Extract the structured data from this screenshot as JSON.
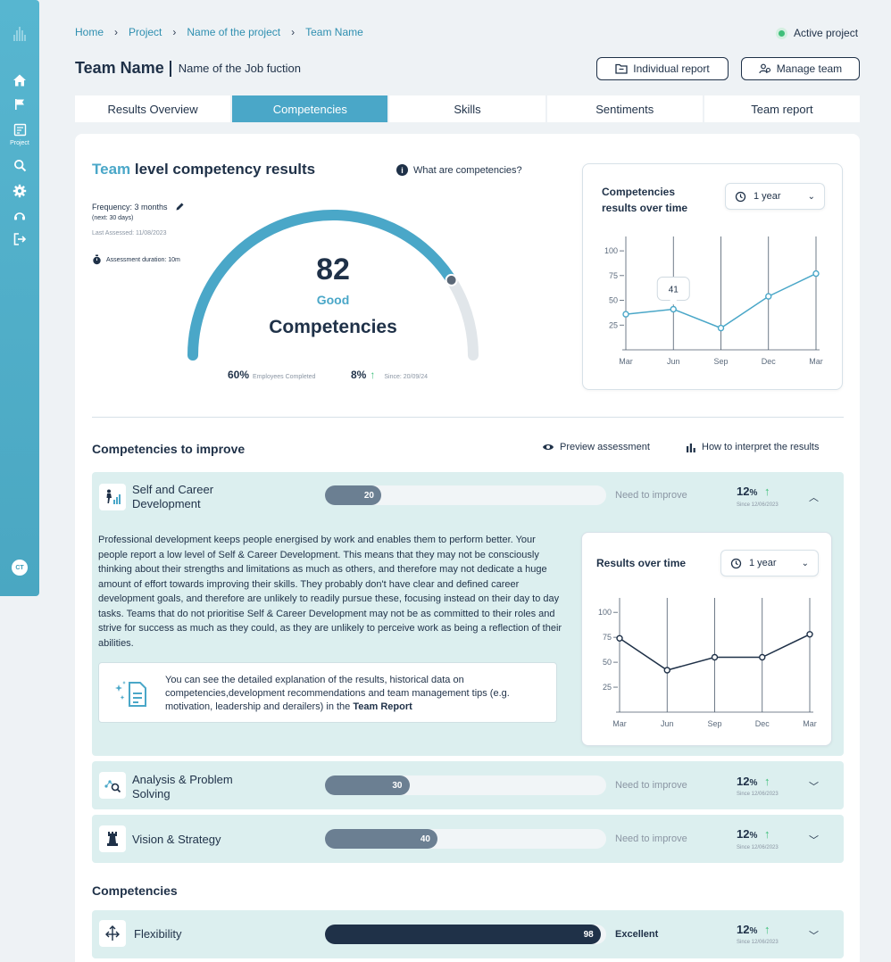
{
  "sidebar": {
    "items": [
      {
        "icon": "home-icon"
      },
      {
        "icon": "flag-icon"
      },
      {
        "icon": "project-icon",
        "label": "Project"
      },
      {
        "icon": "search-icon"
      },
      {
        "icon": "gear-icon"
      },
      {
        "icon": "support-icon"
      },
      {
        "icon": "logout-icon"
      }
    ],
    "avatar": "CT"
  },
  "breadcrumb": [
    "Home",
    "Project",
    "Name of the project",
    "Team Name"
  ],
  "active_project_label": "Active project",
  "header": {
    "title": "Team Name",
    "subtitle": "Name of the Job fuction",
    "individual_report": "Individual report",
    "manage_team": "Manage team"
  },
  "tabs": [
    "Results Overview",
    "Competencies",
    "Skills",
    "Sentiments",
    "Team report"
  ],
  "active_tab": "Competencies",
  "overview": {
    "title_accent": "Team",
    "title_rest": " level competency results",
    "what_link": "What are competencies?",
    "frequency": "Frequency: 3 months",
    "next": "(next: 30 days)",
    "last_assessed": "Last Assessed: 11/08/2023",
    "duration": "Assessment duration: 10m",
    "score": "82",
    "score_value": 82,
    "rating": "Good",
    "label": "Competencies",
    "completed_pct": "60%",
    "completed_label": "Employees Completed",
    "change_pct": "8%",
    "since": "Since: 20/09/24"
  },
  "team_time": {
    "title_line1": "Competencies",
    "title_line2": "results over time",
    "range": "1 year",
    "tooltip": "41"
  },
  "improve": {
    "title": "Competencies to improve",
    "preview": "Preview assessment",
    "interpret": "How to interpret the results"
  },
  "rows": [
    {
      "name_l1": "Self and Career",
      "name_l2": "Development",
      "value": "20",
      "score": 20,
      "status": "Need to improve",
      "pct": "12",
      "pct_sign": "%",
      "since": "Since 12/06/2023",
      "icon": "career-growth-icon"
    },
    {
      "name_l1": "Analysis & Problem",
      "name_l2": "Solving",
      "value": "30",
      "score": 30,
      "status": "Need to improve",
      "pct": "12",
      "pct_sign": "%",
      "since": "Since 12/06/2023",
      "icon": "analysis-icon"
    },
    {
      "name_l1": "Vision & Strategy",
      "value": "40",
      "score": 40,
      "status": "Need to improve",
      "pct": "12",
      "pct_sign": "%",
      "since": "Since 12/06/2023",
      "icon": "chess-rook-icon"
    },
    {
      "name_l1": "Flexibility",
      "value": "98",
      "score": 98,
      "status": "Excellent",
      "pct": "12",
      "pct_sign": "%",
      "since": "Since 12/06/2023",
      "icon": "flexibility-arrows-icon"
    }
  ],
  "detail": {
    "description": "Professional development keeps people energised by work and enables them to perform better. Your people report a low level of Self & Career Development. This means that they may not be consciously thinking about their strengths and limitations as much as others, and therefore may not dedicate a huge amount of effort towards improving their skills. They probably don't have clear and defined career development goals, and therefore are unlikely to readily pursue these, focusing instead on their day to day tasks. Teams that do not prioritise Self & Career Development may not be as committed to their roles and strive for success as much as they could, as they are unlikely to perceive work as being a reflection of their abilities.",
    "note_text": "You can see the detailed explanation of the results, historical data on competencies,development recommendations and team management tips (e.g. motivation, leadership and derailers) in the ",
    "note_bold": "Team Report",
    "results_title": "Results over time",
    "range": "1 year"
  },
  "competencies_title": "Competencies",
  "colors": {
    "accent": "#4aa7c8",
    "dark": "#1f3148",
    "green": "#3fbf7a",
    "row_bg": "#dcefef",
    "sidebar": "#4aa7c2"
  },
  "chart_data": [
    {
      "type": "line",
      "title": "Competencies results over time",
      "x": [
        "Mar",
        "Jun",
        "Sep",
        "Dec",
        "Mar"
      ],
      "values": [
        36,
        41,
        22,
        54,
        77
      ],
      "yticks": [
        25,
        50,
        75,
        100
      ],
      "ylim": [
        0,
        110
      ],
      "annotation": "41"
    },
    {
      "type": "line",
      "title": "Results over time",
      "x": [
        "Mar",
        "Jun",
        "Sep",
        "Dec",
        "Mar"
      ],
      "values": [
        74,
        42,
        55,
        55,
        78
      ],
      "yticks": [
        25,
        50,
        75,
        100
      ],
      "ylim": [
        0,
        110
      ]
    }
  ]
}
